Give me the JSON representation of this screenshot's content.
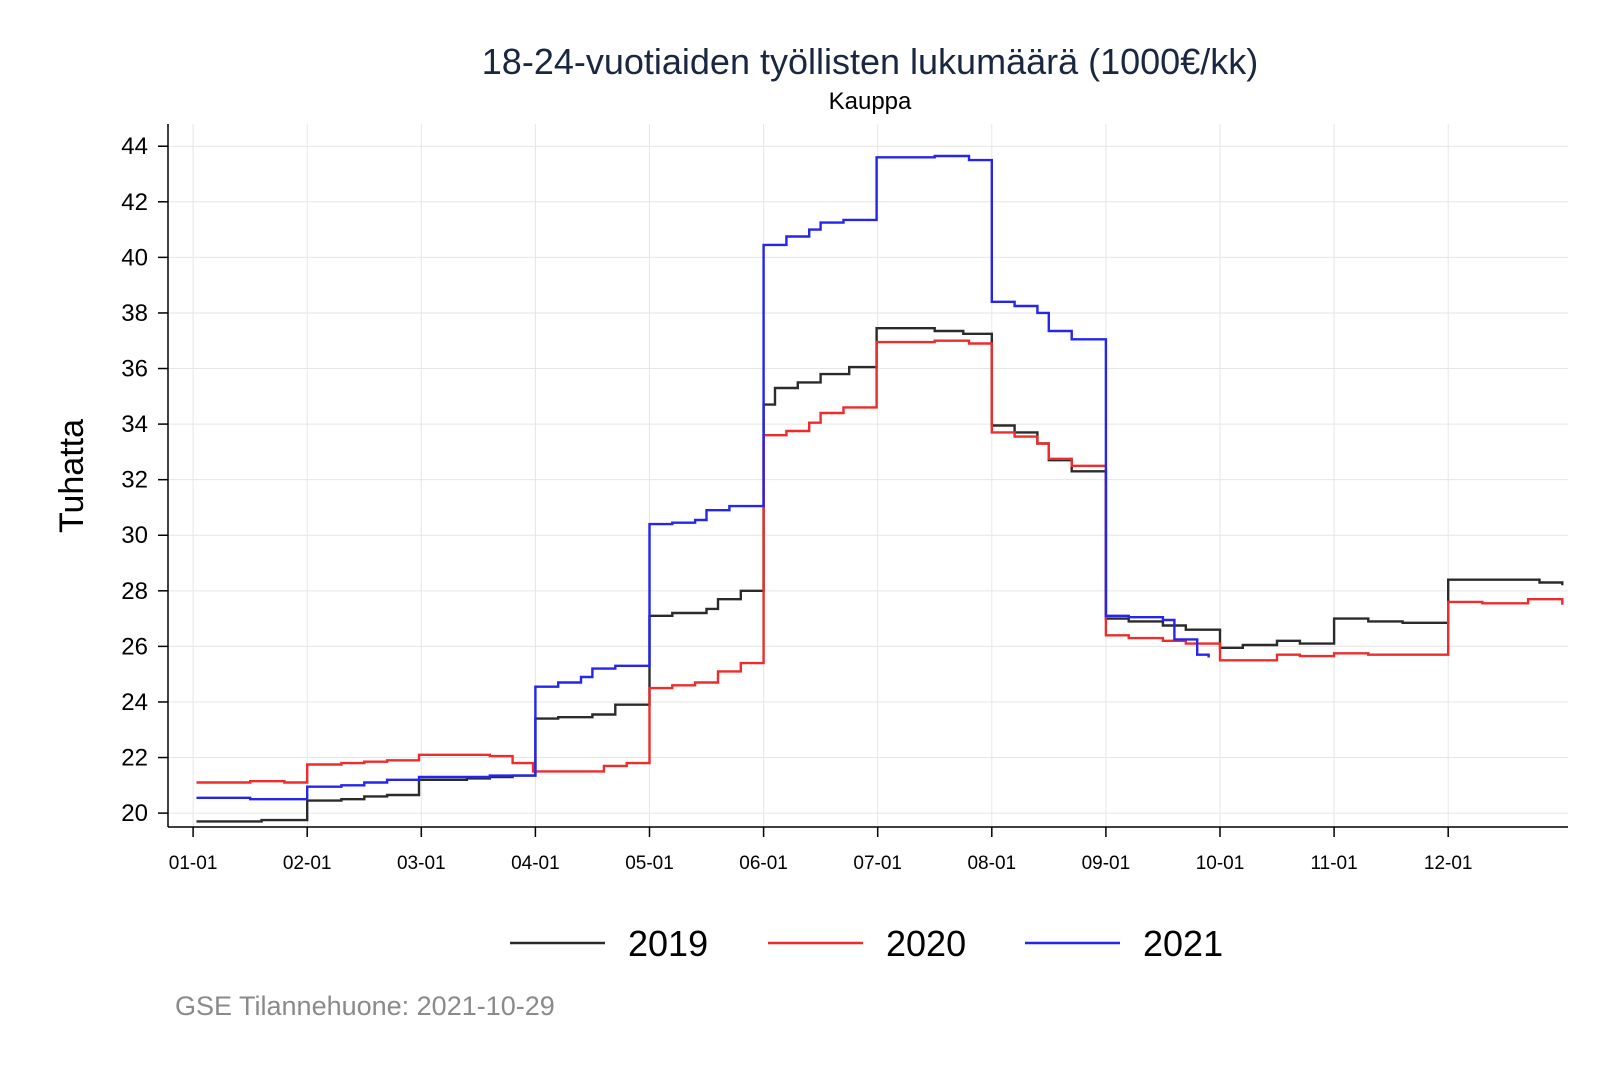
{
  "chart_data": {
    "type": "line",
    "title": "18-24-vuotiaiden työllisten lukumäärä (1000€/kk)",
    "subtitle": "Kauppa",
    "ylabel": "Tuhatta",
    "xlabel": "",
    "ylim": [
      19.5,
      44.8
    ],
    "yticks": [
      20,
      22,
      24,
      26,
      28,
      30,
      32,
      34,
      36,
      38,
      40,
      42,
      44
    ],
    "xlim": [
      0.78,
      13.05
    ],
    "xticks": [
      {
        "x": 1,
        "label": "01-01"
      },
      {
        "x": 2,
        "label": "02-01"
      },
      {
        "x": 3,
        "label": "03-01"
      },
      {
        "x": 4,
        "label": "04-01"
      },
      {
        "x": 5,
        "label": "05-01"
      },
      {
        "x": 6,
        "label": "06-01"
      },
      {
        "x": 7,
        "label": "07-01"
      },
      {
        "x": 8,
        "label": "08-01"
      },
      {
        "x": 9,
        "label": "09-01"
      },
      {
        "x": 10,
        "label": "10-01"
      },
      {
        "x": 11,
        "label": "11-01"
      },
      {
        "x": 12,
        "label": "12-01"
      }
    ],
    "grid": true,
    "legend_position": "bottom",
    "series": [
      {
        "name": "2019",
        "color": "#2b2b2b",
        "points": [
          [
            1.03,
            19.7
          ],
          [
            1.2,
            19.7
          ],
          [
            1.4,
            19.7
          ],
          [
            1.6,
            19.75
          ],
          [
            1.8,
            19.75
          ],
          [
            2.0,
            19.8
          ],
          [
            2.0,
            20.45
          ],
          [
            2.3,
            20.5
          ],
          [
            2.5,
            20.6
          ],
          [
            2.7,
            20.65
          ],
          [
            2.98,
            20.7
          ],
          [
            2.98,
            21.2
          ],
          [
            3.2,
            21.2
          ],
          [
            3.4,
            21.25
          ],
          [
            3.6,
            21.3
          ],
          [
            3.8,
            21.35
          ],
          [
            4.0,
            21.4
          ],
          [
            4.0,
            23.4
          ],
          [
            4.2,
            23.45
          ],
          [
            4.5,
            23.55
          ],
          [
            4.7,
            23.9
          ],
          [
            5.0,
            24.05
          ],
          [
            5.0,
            27.1
          ],
          [
            5.2,
            27.2
          ],
          [
            5.5,
            27.35
          ],
          [
            5.6,
            27.7
          ],
          [
            5.8,
            28.0
          ],
          [
            6.0,
            28.25
          ],
          [
            6.0,
            34.7
          ],
          [
            6.1,
            35.3
          ],
          [
            6.3,
            35.5
          ],
          [
            6.5,
            35.8
          ],
          [
            6.75,
            36.05
          ],
          [
            6.99,
            36.0
          ],
          [
            6.99,
            37.45
          ],
          [
            7.2,
            37.45
          ],
          [
            7.5,
            37.35
          ],
          [
            7.75,
            37.25
          ],
          [
            8.0,
            37.1
          ],
          [
            8.0,
            33.95
          ],
          [
            8.2,
            33.7
          ],
          [
            8.4,
            33.3
          ],
          [
            8.5,
            32.7
          ],
          [
            8.7,
            32.3
          ],
          [
            9.0,
            32.0
          ],
          [
            9.0,
            27.0
          ],
          [
            9.2,
            26.9
          ],
          [
            9.5,
            26.75
          ],
          [
            9.7,
            26.6
          ],
          [
            10.0,
            26.55
          ],
          [
            10.0,
            25.95
          ],
          [
            10.2,
            26.05
          ],
          [
            10.5,
            26.2
          ],
          [
            10.7,
            26.1
          ],
          [
            11.0,
            26.1
          ],
          [
            11.0,
            27.0
          ],
          [
            11.3,
            26.9
          ],
          [
            11.6,
            26.85
          ],
          [
            12.0,
            26.85
          ],
          [
            12.0,
            28.4
          ],
          [
            12.3,
            28.4
          ],
          [
            12.6,
            28.4
          ],
          [
            12.8,
            28.3
          ],
          [
            13.0,
            28.2
          ]
        ]
      },
      {
        "name": "2020",
        "color": "#ee2c2c",
        "points": [
          [
            1.03,
            21.1
          ],
          [
            1.3,
            21.1
          ],
          [
            1.5,
            21.15
          ],
          [
            1.8,
            21.1
          ],
          [
            2.0,
            21.1
          ],
          [
            2.0,
            21.75
          ],
          [
            2.3,
            21.8
          ],
          [
            2.5,
            21.85
          ],
          [
            2.7,
            21.9
          ],
          [
            2.98,
            22.0
          ],
          [
            2.98,
            22.1
          ],
          [
            3.3,
            22.1
          ],
          [
            3.6,
            22.05
          ],
          [
            3.8,
            21.8
          ],
          [
            3.98,
            21.6
          ],
          [
            3.98,
            21.5
          ],
          [
            4.2,
            21.5
          ],
          [
            4.4,
            21.5
          ],
          [
            4.6,
            21.7
          ],
          [
            4.8,
            21.8
          ],
          [
            5.0,
            22.0
          ],
          [
            5.0,
            24.5
          ],
          [
            5.2,
            24.6
          ],
          [
            5.4,
            24.7
          ],
          [
            5.6,
            25.1
          ],
          [
            5.8,
            25.4
          ],
          [
            6.0,
            25.5
          ],
          [
            6.0,
            33.6
          ],
          [
            6.2,
            33.75
          ],
          [
            6.4,
            34.05
          ],
          [
            6.5,
            34.4
          ],
          [
            6.7,
            34.6
          ],
          [
            6.99,
            34.75
          ],
          [
            6.99,
            36.95
          ],
          [
            7.2,
            36.95
          ],
          [
            7.5,
            37.0
          ],
          [
            7.8,
            36.9
          ],
          [
            8.0,
            36.85
          ],
          [
            8.0,
            33.7
          ],
          [
            8.2,
            33.55
          ],
          [
            8.4,
            33.3
          ],
          [
            8.5,
            32.75
          ],
          [
            8.7,
            32.5
          ],
          [
            9.0,
            32.1
          ],
          [
            9.0,
            26.4
          ],
          [
            9.2,
            26.3
          ],
          [
            9.5,
            26.2
          ],
          [
            9.7,
            26.1
          ],
          [
            10.0,
            25.9
          ],
          [
            10.0,
            25.5
          ],
          [
            10.2,
            25.5
          ],
          [
            10.5,
            25.7
          ],
          [
            10.7,
            25.65
          ],
          [
            11.0,
            25.7
          ],
          [
            11.0,
            25.75
          ],
          [
            11.3,
            25.7
          ],
          [
            11.6,
            25.7
          ],
          [
            12.0,
            25.7
          ],
          [
            12.0,
            27.6
          ],
          [
            12.3,
            27.55
          ],
          [
            12.5,
            27.55
          ],
          [
            12.7,
            27.7
          ],
          [
            13.0,
            27.5
          ]
        ]
      },
      {
        "name": "2021",
        "color": "#2525ee",
        "points": [
          [
            1.03,
            20.55
          ],
          [
            1.3,
            20.55
          ],
          [
            1.5,
            20.5
          ],
          [
            1.8,
            20.5
          ],
          [
            2.0,
            20.5
          ],
          [
            2.0,
            20.95
          ],
          [
            2.3,
            21.0
          ],
          [
            2.5,
            21.1
          ],
          [
            2.7,
            21.2
          ],
          [
            2.98,
            21.25
          ],
          [
            2.98,
            21.3
          ],
          [
            3.3,
            21.3
          ],
          [
            3.6,
            21.35
          ],
          [
            3.8,
            21.35
          ],
          [
            4.0,
            21.4
          ],
          [
            4.0,
            24.55
          ],
          [
            4.2,
            24.7
          ],
          [
            4.4,
            24.9
          ],
          [
            4.5,
            25.2
          ],
          [
            4.7,
            25.3
          ],
          [
            5.0,
            25.4
          ],
          [
            5.0,
            30.4
          ],
          [
            5.2,
            30.45
          ],
          [
            5.4,
            30.55
          ],
          [
            5.5,
            30.9
          ],
          [
            5.7,
            31.05
          ],
          [
            6.0,
            31.15
          ],
          [
            6.0,
            40.45
          ],
          [
            6.2,
            40.75
          ],
          [
            6.4,
            41.0
          ],
          [
            6.5,
            41.25
          ],
          [
            6.7,
            41.35
          ],
          [
            6.99,
            41.4
          ],
          [
            6.99,
            43.6
          ],
          [
            7.2,
            43.6
          ],
          [
            7.5,
            43.65
          ],
          [
            7.8,
            43.5
          ],
          [
            8.0,
            43.4
          ],
          [
            8.0,
            38.4
          ],
          [
            8.2,
            38.25
          ],
          [
            8.4,
            38.0
          ],
          [
            8.5,
            37.35
          ],
          [
            8.7,
            37.05
          ],
          [
            9.0,
            36.85
          ],
          [
            9.0,
            27.1
          ],
          [
            9.2,
            27.05
          ],
          [
            9.5,
            26.95
          ],
          [
            9.6,
            26.25
          ],
          [
            9.8,
            25.7
          ],
          [
            9.9,
            25.6
          ]
        ]
      }
    ]
  },
  "caption": "GSE Tilannehuone: 2021-10-29"
}
